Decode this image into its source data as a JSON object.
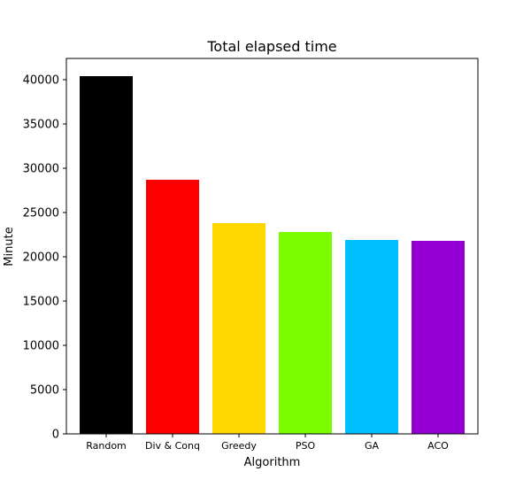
{
  "chart_data": {
    "type": "bar",
    "title": "Total elapsed time",
    "xlabel": "Algorithm",
    "ylabel": "Minute",
    "categories": [
      "Random",
      "Div & Conq",
      "Greedy",
      "PSO",
      "GA",
      "ACO"
    ],
    "values": [
      40400,
      28700,
      23800,
      22800,
      21900,
      21800
    ],
    "colors": [
      "#000000",
      "#ff0000",
      "#ffd700",
      "#7cfc00",
      "#00bfff",
      "#9400d3"
    ],
    "ylim": [
      0,
      42400
    ],
    "yticks": [
      0,
      5000,
      10000,
      15000,
      20000,
      25000,
      30000,
      35000,
      40000
    ],
    "grid": false,
    "legend": "none"
  }
}
